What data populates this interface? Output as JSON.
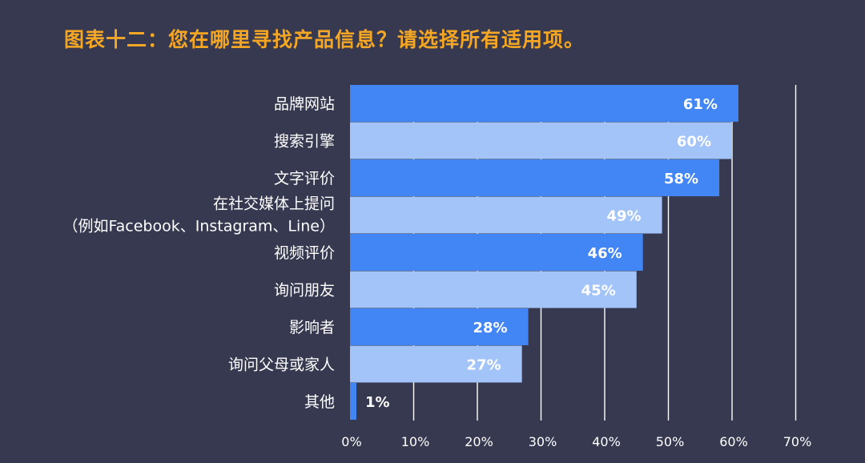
{
  "title": "图表十二：您在哪里寻找产品信息？请选择所有适用项。",
  "colors": {
    "background": "#363950",
    "title": "#F5A623",
    "bar_dark": "#4285F4",
    "bar_light": "#A3C4F8",
    "gridline": "#FFFFFF",
    "text": "#FFFFFF"
  },
  "chart_data": {
    "type": "bar",
    "orientation": "horizontal",
    "title": "图表十二：您在哪里寻找产品信息？请选择所有适用项。",
    "categories": [
      [
        "品牌网站"
      ],
      [
        "搜索引擎"
      ],
      [
        "文字评价"
      ],
      [
        "在社交媒体上提问",
        "（例如Facebook、Instagram、Line）"
      ],
      [
        "视频评价"
      ],
      [
        "询问朋友"
      ],
      [
        "影响者"
      ],
      [
        "询问父母或家人"
      ],
      [
        "其他"
      ]
    ],
    "values": [
      61,
      60,
      58,
      49,
      46,
      45,
      28,
      27,
      1
    ],
    "value_labels": [
      "61%",
      "60%",
      "58%",
      "49%",
      "46%",
      "45%",
      "28%",
      "27%",
      "1%"
    ],
    "xlim": [
      0,
      70
    ],
    "ticks": [
      0,
      10,
      20,
      30,
      40,
      50,
      60,
      70
    ],
    "tick_labels": [
      "0%",
      "10%",
      "20%",
      "30%",
      "40%",
      "50%",
      "60%",
      "70%"
    ],
    "grid": true
  }
}
